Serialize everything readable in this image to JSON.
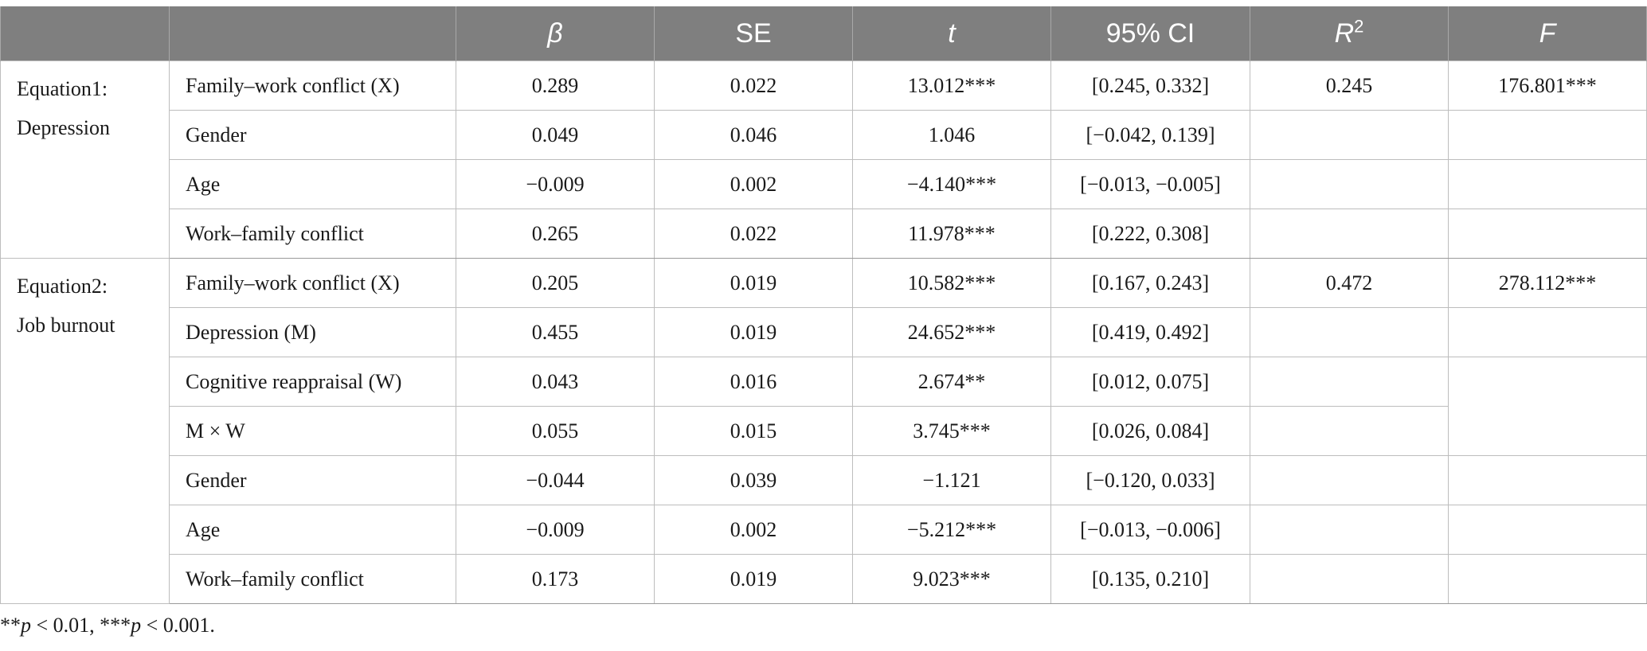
{
  "header": {
    "blank_1": "",
    "blank_2": "",
    "beta": "β",
    "se": "SE",
    "t": "t",
    "ci": "95% CI",
    "r2_base": "R",
    "r2_sup": "2",
    "f": "F"
  },
  "equation1": {
    "label_line1": "Equation1:",
    "label_line2": "Depression",
    "r2": "0.245",
    "f": "176.801***",
    "rows": [
      {
        "variable": "Family–work conflict (X)",
        "beta": "0.289",
        "se": "0.022",
        "t": "13.012***",
        "ci": "[0.245, 0.332]"
      },
      {
        "variable": "Gender",
        "beta": "0.049",
        "se": "0.046",
        "t": "1.046",
        "ci": "[−0.042, 0.139]"
      },
      {
        "variable": "Age",
        "beta": "−0.009",
        "se": "0.002",
        "t": "−4.140***",
        "ci": "[−0.013, −0.005]"
      },
      {
        "variable": "Work–family conflict",
        "beta": "0.265",
        "se": "0.022",
        "t": "11.978***",
        "ci": "[0.222, 0.308]"
      }
    ]
  },
  "equation2": {
    "label_line1": "Equation2:",
    "label_line2": "Job burnout",
    "r2": "0.472",
    "f": "278.112***",
    "rows": [
      {
        "variable": "Family–work conflict (X)",
        "beta": "0.205",
        "se": "0.019",
        "t": "10.582***",
        "ci": "[0.167, 0.243]"
      },
      {
        "variable": "Depression (M)",
        "beta": "0.455",
        "se": "0.019",
        "t": "24.652***",
        "ci": "[0.419, 0.492]"
      },
      {
        "variable": "Cognitive reappraisal (W)",
        "beta": "0.043",
        "se": "0.016",
        "t": "2.674**",
        "ci": "[0.012, 0.075]"
      },
      {
        "variable": "M × W",
        "beta": "0.055",
        "se": "0.015",
        "t": "3.745***",
        "ci": "[0.026, 0.084]"
      },
      {
        "variable": "Gender",
        "beta": "−0.044",
        "se": "0.039",
        "t": "−1.121",
        "ci": "[−0.120, 0.033]"
      },
      {
        "variable": "Age",
        "beta": "−0.009",
        "se": "0.002",
        "t": "−5.212***",
        "ci": "[−0.013, −0.006]"
      },
      {
        "variable": "Work–family conflict",
        "beta": "0.173",
        "se": "0.019",
        "t": "9.023***",
        "ci": "[0.135, 0.210]"
      }
    ]
  },
  "footnote": {
    "s1_stars": "**",
    "s1_p": "p",
    "s1_text": " < 0.01, ",
    "s2_stars": "***",
    "s2_p": "p",
    "s2_text": " < 0.001."
  },
  "colors": {
    "header_bg": "#7f7f7f",
    "header_text": "#ffffff",
    "grid": "#bdbdbd",
    "body_text": "#1a1a1a"
  }
}
